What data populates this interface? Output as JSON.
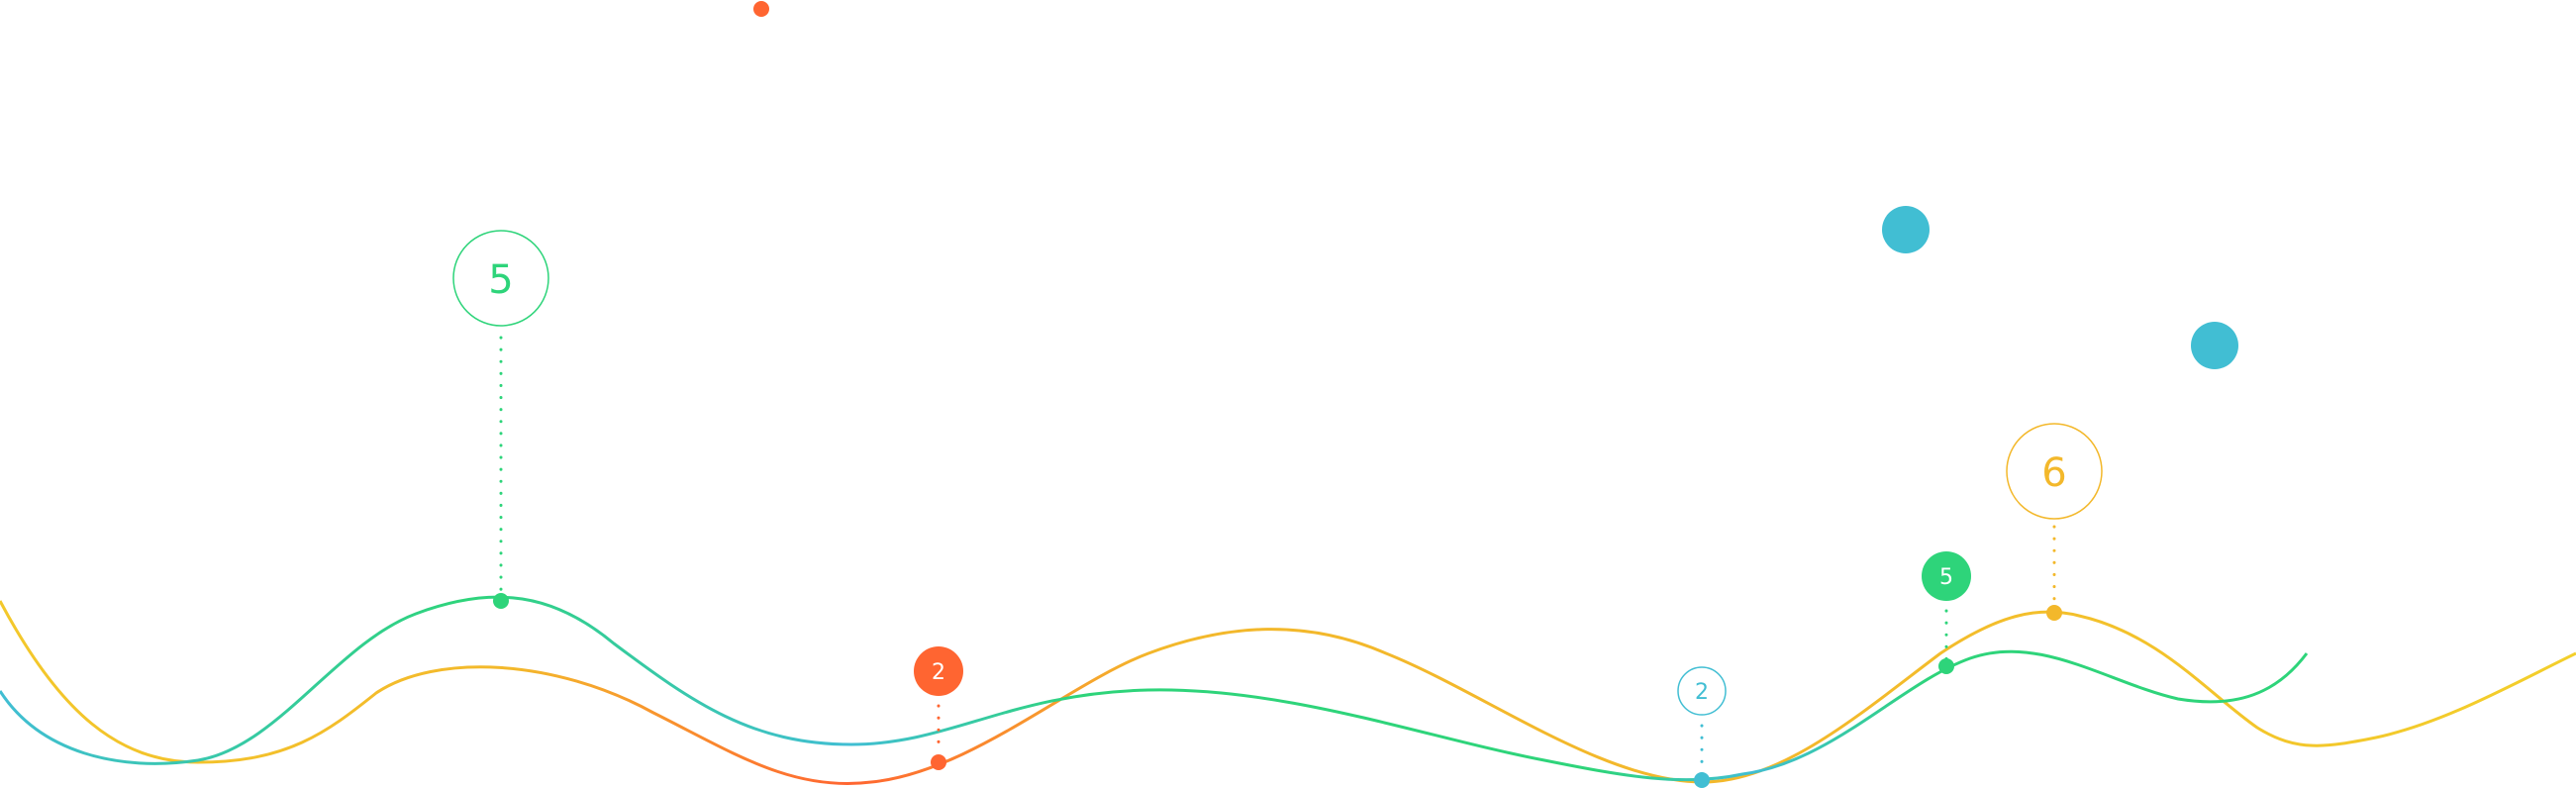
{
  "colors": {
    "green": "#2ed47a",
    "teal": "#41bed3",
    "orange": "#ff6531",
    "yellow": "#f3b82b",
    "white": "#ffffff"
  },
  "markers": [
    {
      "id": "green-peak",
      "value": "5",
      "style": "outline",
      "color": "green"
    },
    {
      "id": "orange-point",
      "value": "2",
      "style": "filled",
      "color": "orange"
    },
    {
      "id": "teal-valley",
      "value": "2",
      "style": "outline",
      "color": "teal"
    },
    {
      "id": "green-point",
      "value": "5",
      "style": "filled",
      "color": "green"
    },
    {
      "id": "yellow-peak",
      "value": "6",
      "style": "outline",
      "color": "yellow"
    }
  ]
}
